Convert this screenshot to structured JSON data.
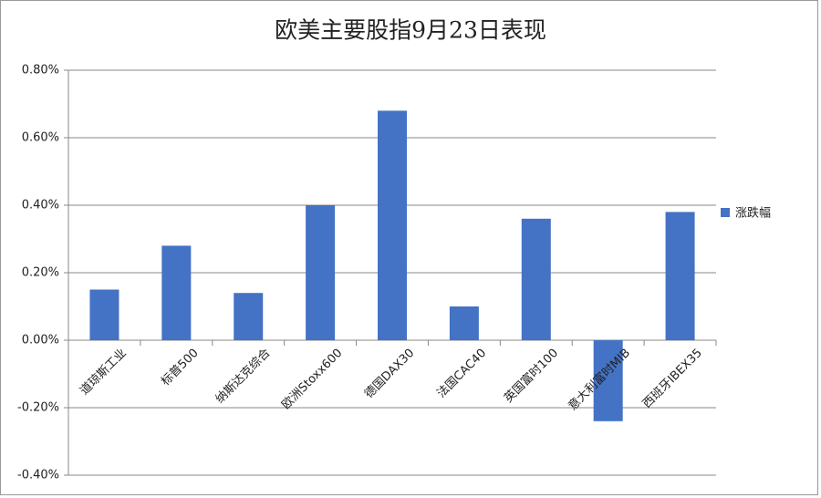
{
  "chart_data": {
    "type": "bar",
    "title": "欧美主要股指9月23日表现",
    "categories": [
      "道琼斯工业",
      "标普500",
      "纳斯达克综合",
      "欧洲Stoxx600",
      "德国DAX30",
      "法国CAC40",
      "英国富时100",
      "意大利富时MIB",
      "西班牙IBEX35"
    ],
    "series": [
      {
        "name": "涨跌幅",
        "color": "#4472c4",
        "values": [
          0.15,
          0.28,
          0.14,
          0.4,
          0.68,
          0.1,
          0.36,
          -0.24,
          0.38
        ]
      }
    ],
    "ylim": [
      -0.4,
      0.8
    ],
    "yticks": [
      {
        "value": -0.4,
        "label": "-0.40%"
      },
      {
        "value": -0.2,
        "label": "-0.20%"
      },
      {
        "value": 0,
        "label": "0.00%"
      },
      {
        "value": 0.2,
        "label": "0.20%"
      },
      {
        "value": 0.4,
        "label": "0.40%"
      },
      {
        "value": 0.6,
        "label": "0.60%"
      },
      {
        "value": 0.8,
        "label": "0.80%"
      }
    ],
    "grid": true,
    "legend": "right"
  }
}
